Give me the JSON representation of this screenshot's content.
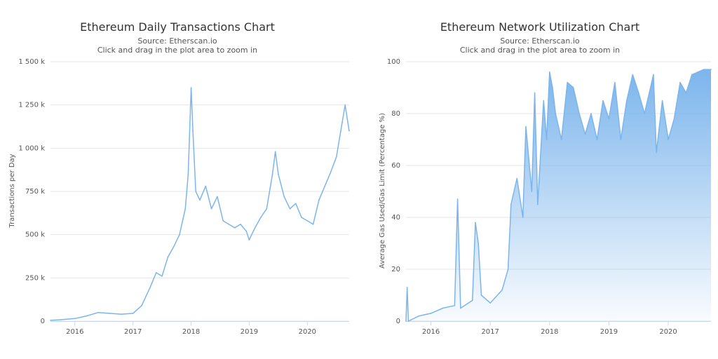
{
  "chart_data": [
    {
      "type": "line",
      "title": "Ethereum Daily Transactions Chart",
      "subtitle": "Source: Etherscan.io",
      "subtitle2": "Click and drag in the plot area to zoom in",
      "xlabel": "",
      "ylabel": "Transactions per Day",
      "xlim": [
        2015.58,
        2020.72
      ],
      "ylim": [
        0,
        1500000
      ],
      "x_ticks": [
        {
          "value": 2016,
          "label": "2016"
        },
        {
          "value": 2017,
          "label": "2017"
        },
        {
          "value": 2018,
          "label": "2018"
        },
        {
          "value": 2019,
          "label": "2019"
        },
        {
          "value": 2020,
          "label": "2020"
        }
      ],
      "y_ticks": [
        {
          "value": 0,
          "label": "0"
        },
        {
          "value": 250000,
          "label": "250 k"
        },
        {
          "value": 500000,
          "label": "500 k"
        },
        {
          "value": 750000,
          "label": "750 k"
        },
        {
          "value": 1000000,
          "label": "1 000 k"
        },
        {
          "value": 1250000,
          "label": "1 250 k"
        },
        {
          "value": 1500000,
          "label": "1 500 k"
        }
      ],
      "grid": true,
      "color": "#7cb5ec",
      "fill": false,
      "x": [
        2015.58,
        2015.75,
        2016.0,
        2016.2,
        2016.4,
        2016.6,
        2016.8,
        2017.0,
        2017.15,
        2017.3,
        2017.4,
        2017.5,
        2017.6,
        2017.7,
        2017.8,
        2017.9,
        2017.95,
        2018.0,
        2018.03,
        2018.08,
        2018.15,
        2018.25,
        2018.35,
        2018.45,
        2018.55,
        2018.65,
        2018.75,
        2018.85,
        2018.95,
        2019.0,
        2019.1,
        2019.2,
        2019.3,
        2019.4,
        2019.45,
        2019.5,
        2019.6,
        2019.7,
        2019.8,
        2019.9,
        2020.0,
        2020.1,
        2020.2,
        2020.3,
        2020.4,
        2020.5,
        2020.6,
        2020.65,
        2020.72
      ],
      "values": [
        5000,
        8000,
        15000,
        30000,
        50000,
        45000,
        40000,
        45000,
        90000,
        200000,
        280000,
        260000,
        370000,
        430000,
        500000,
        650000,
        850000,
        1350000,
        1100000,
        750000,
        700000,
        780000,
        650000,
        720000,
        580000,
        560000,
        540000,
        560000,
        520000,
        470000,
        540000,
        600000,
        650000,
        850000,
        980000,
        850000,
        720000,
        650000,
        680000,
        600000,
        580000,
        560000,
        700000,
        780000,
        860000,
        950000,
        1150000,
        1250000,
        1100000
      ]
    },
    {
      "type": "area",
      "title": "Ethereum Network Utilization Chart",
      "subtitle": "Source: Etherscan.io",
      "subtitle2": "Click and drag in the plot area to zoom in",
      "xlabel": "",
      "ylabel": "Average Gas Used/Gas Limit (Percentage %)",
      "xlim": [
        2015.58,
        2020.72
      ],
      "ylim": [
        0,
        100
      ],
      "x_ticks": [
        {
          "value": 2016,
          "label": "2016"
        },
        {
          "value": 2017,
          "label": "2017"
        },
        {
          "value": 2018,
          "label": "2018"
        },
        {
          "value": 2019,
          "label": "2019"
        },
        {
          "value": 2020,
          "label": "2020"
        }
      ],
      "y_ticks": [
        {
          "value": 0,
          "label": "0"
        },
        {
          "value": 20,
          "label": "20"
        },
        {
          "value": 40,
          "label": "40"
        },
        {
          "value": 60,
          "label": "60"
        },
        {
          "value": 80,
          "label": "80"
        },
        {
          "value": 100,
          "label": "100"
        }
      ],
      "grid": true,
      "color": "#7cb5ec",
      "fill": true,
      "x": [
        2015.58,
        2015.6,
        2015.62,
        2015.8,
        2016.0,
        2016.2,
        2016.4,
        2016.45,
        2016.5,
        2016.7,
        2016.75,
        2016.8,
        2016.85,
        2017.0,
        2017.2,
        2017.3,
        2017.35,
        2017.45,
        2017.55,
        2017.6,
        2017.7,
        2017.75,
        2017.8,
        2017.9,
        2017.95,
        2018.0,
        2018.05,
        2018.1,
        2018.2,
        2018.3,
        2018.4,
        2018.5,
        2018.6,
        2018.7,
        2018.8,
        2018.9,
        2019.0,
        2019.1,
        2019.2,
        2019.3,
        2019.4,
        2019.5,
        2019.6,
        2019.7,
        2019.75,
        2019.8,
        2019.9,
        2020.0,
        2020.1,
        2020.2,
        2020.3,
        2020.4,
        2020.5,
        2020.6,
        2020.72
      ],
      "values": [
        0,
        13,
        0,
        2,
        3,
        5,
        6,
        47,
        5,
        8,
        38,
        30,
        10,
        7,
        12,
        20,
        45,
        55,
        40,
        75,
        50,
        88,
        45,
        85,
        70,
        96,
        90,
        80,
        70,
        92,
        90,
        80,
        72,
        80,
        70,
        85,
        78,
        92,
        70,
        85,
        95,
        88,
        80,
        90,
        95,
        65,
        85,
        70,
        78,
        92,
        88,
        95,
        96,
        97,
        97
      ]
    }
  ]
}
